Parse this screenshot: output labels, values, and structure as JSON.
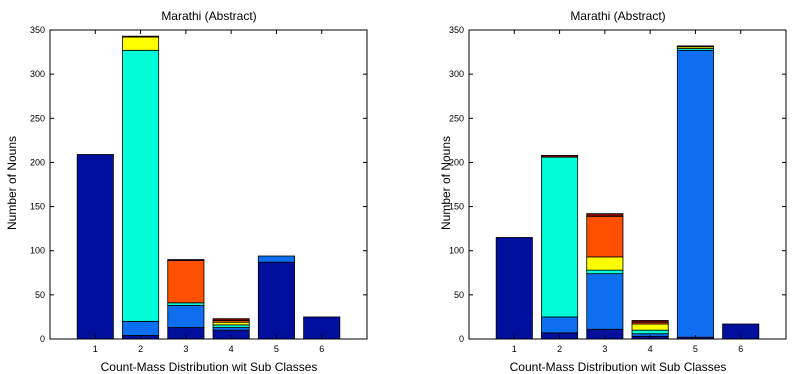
{
  "chart_data": [
    {
      "type": "bar",
      "stacked": true,
      "title": "Marathi (Abstract)",
      "xlabel": "Count-Mass Distribution wit Sub Classes",
      "ylabel": "Number of Nouns",
      "categories": [
        "1",
        "2",
        "3",
        "4",
        "5",
        "6"
      ],
      "ylim": [
        0,
        350
      ],
      "yticks": [
        "0",
        "50",
        "100",
        "150",
        "200",
        "250",
        "300",
        "350"
      ],
      "grid": false,
      "series": [
        {
          "color": "#00109c",
          "values": [
            209,
            4,
            13,
            10,
            87,
            25
          ]
        },
        {
          "color": "#0e6ef0",
          "values": [
            0,
            16,
            25,
            3,
            7,
            0
          ]
        },
        {
          "color": "#00ffd8",
          "values": [
            0,
            307,
            3,
            3,
            0,
            0
          ]
        },
        {
          "color": "#ffff00",
          "values": [
            0,
            15,
            0,
            3,
            0,
            0
          ]
        },
        {
          "color": "#ff5000",
          "values": [
            0,
            0,
            48,
            2,
            0,
            0
          ]
        },
        {
          "color": "#800000",
          "values": [
            0,
            1,
            1,
            2,
            0,
            0
          ]
        }
      ]
    },
    {
      "type": "bar",
      "stacked": true,
      "title": "Marathi (Abstract)",
      "xlabel": "Count-Mass Distribution wit Sub Classes",
      "ylabel": "Number of Nouns",
      "categories": [
        "1",
        "2",
        "3",
        "4",
        "5",
        "6"
      ],
      "ylim": [
        0,
        350
      ],
      "yticks": [
        "0",
        "50",
        "100",
        "150",
        "200",
        "250",
        "300",
        "350"
      ],
      "grid": false,
      "series": [
        {
          "color": "#00109c",
          "values": [
            115,
            7,
            11,
            3,
            2,
            17
          ]
        },
        {
          "color": "#0e6ef0",
          "values": [
            0,
            18,
            63,
            3,
            325,
            0
          ]
        },
        {
          "color": "#00ffd8",
          "values": [
            0,
            181,
            4,
            4,
            2,
            0
          ]
        },
        {
          "color": "#ffff00",
          "values": [
            0,
            0,
            15,
            7,
            2,
            0
          ]
        },
        {
          "color": "#ff5000",
          "values": [
            0,
            0,
            46,
            2,
            0,
            0
          ]
        },
        {
          "color": "#800000",
          "values": [
            0,
            2,
            3,
            2,
            1,
            0
          ]
        }
      ]
    }
  ]
}
